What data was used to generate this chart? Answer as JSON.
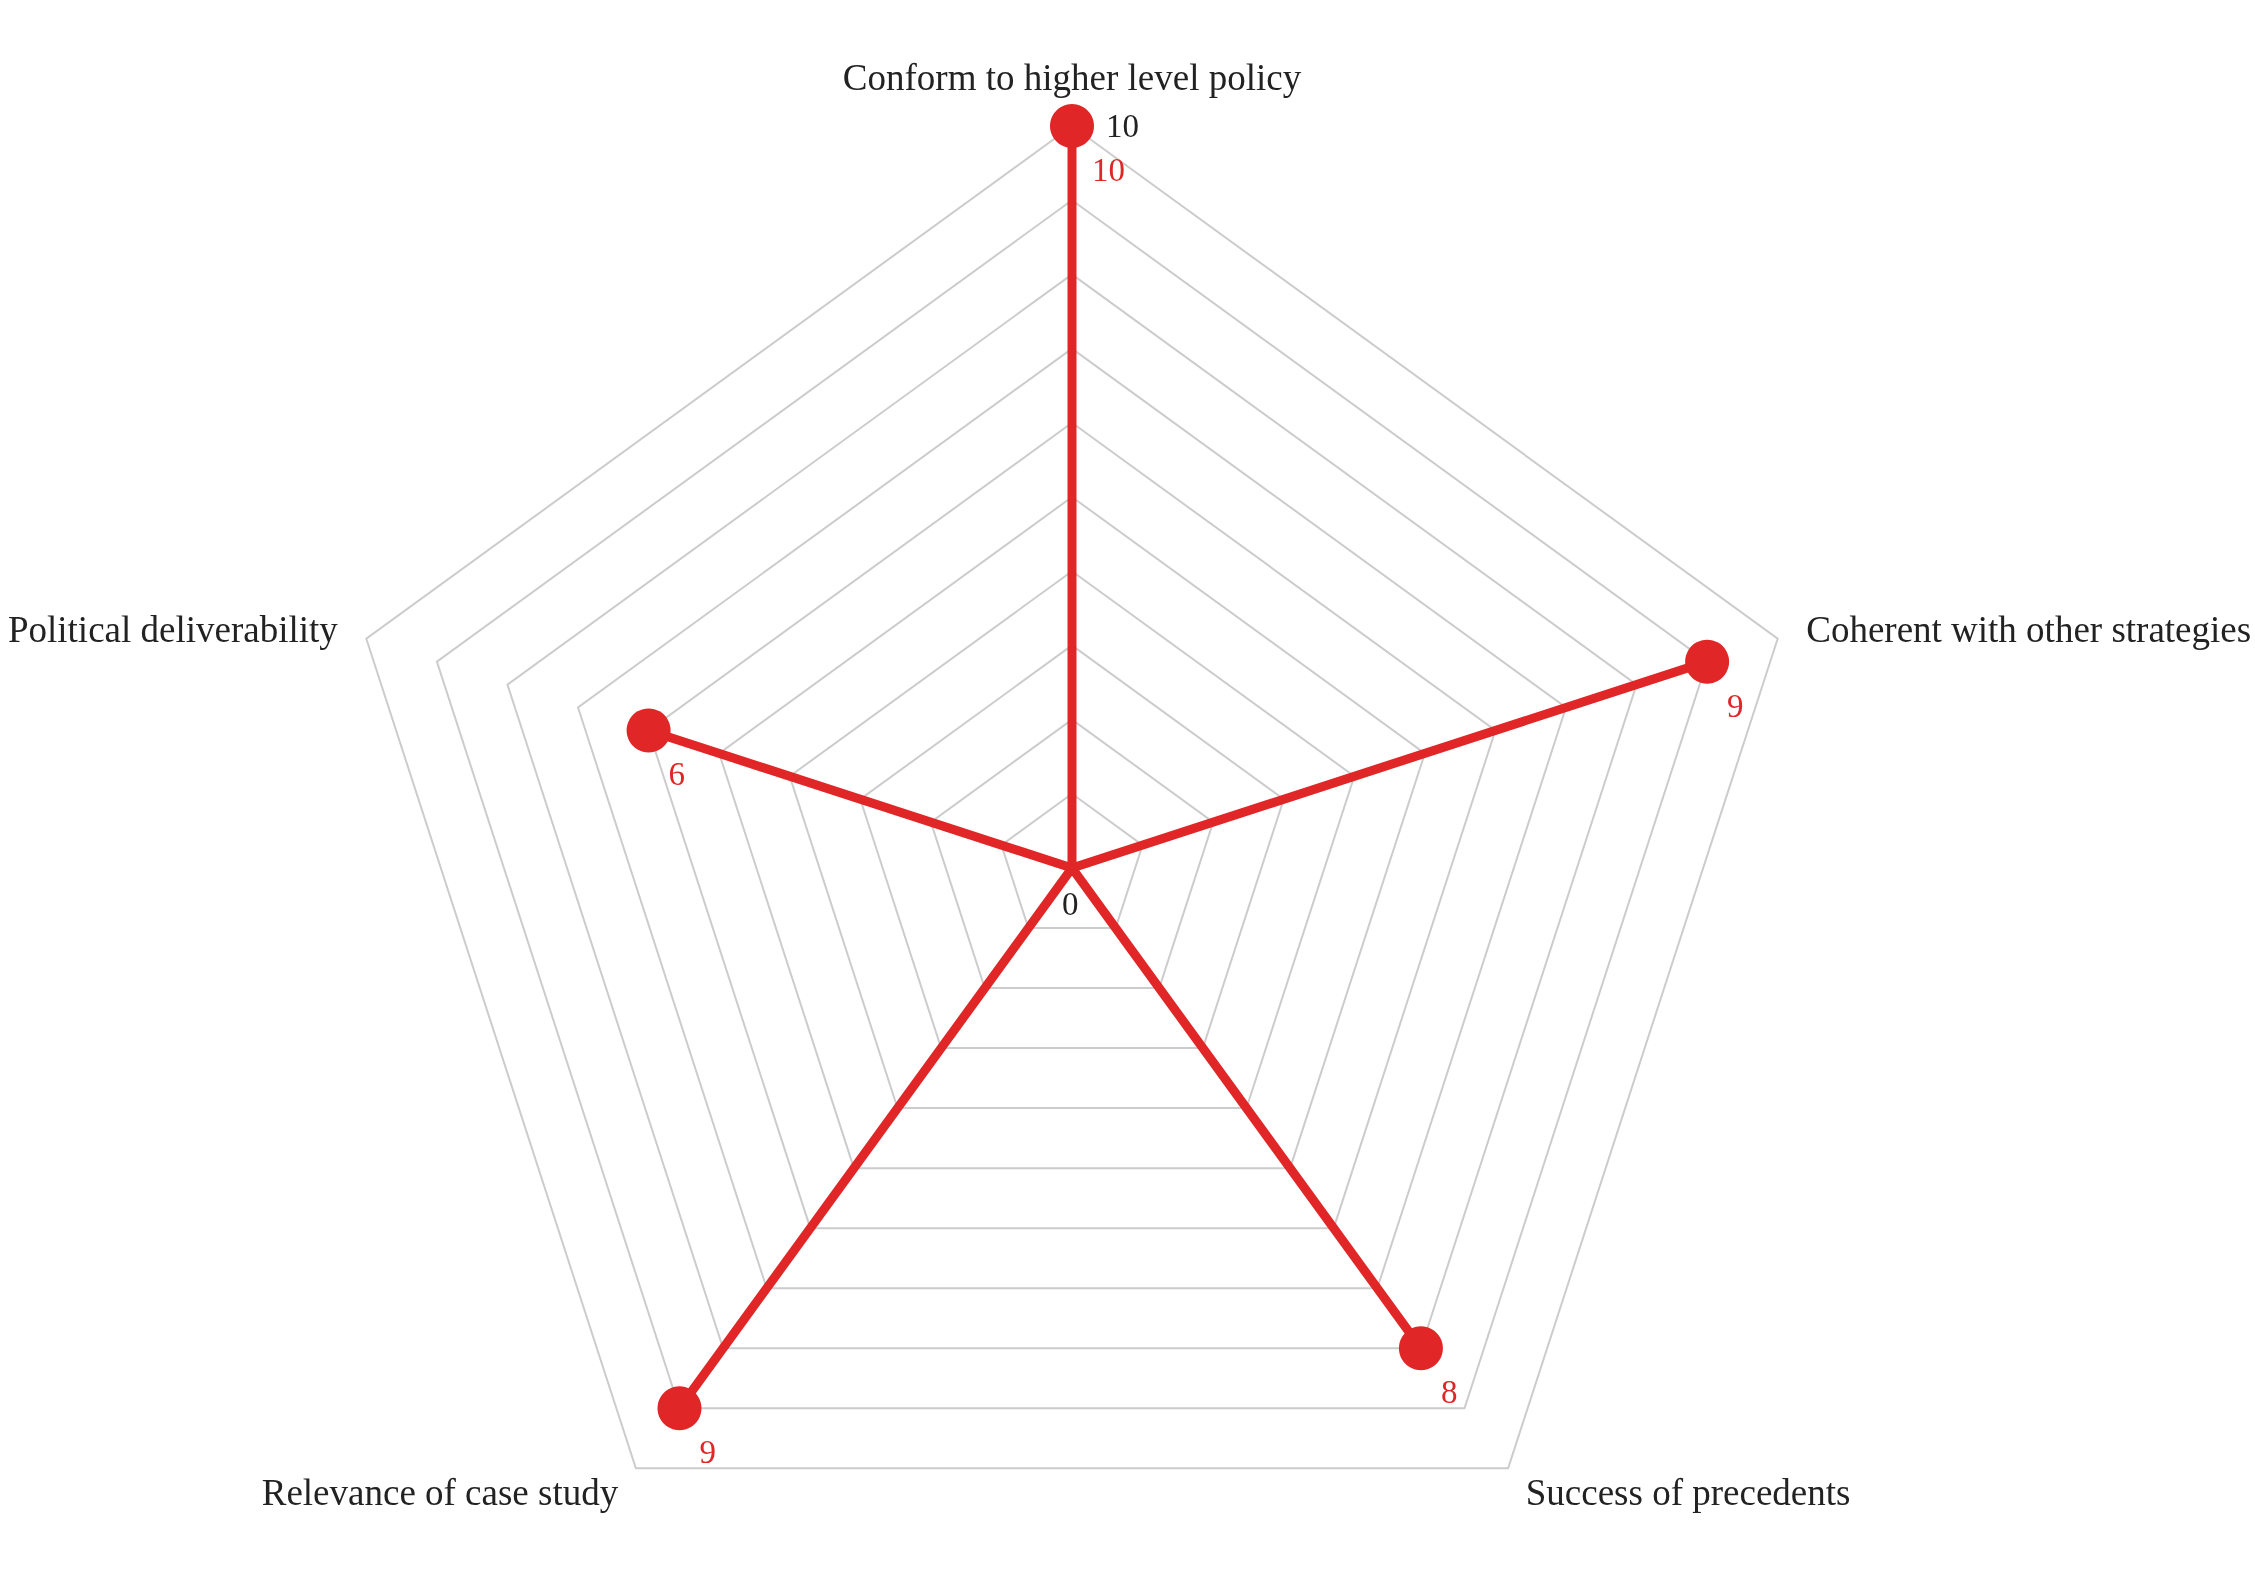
{
  "chart_data": {
    "type": "radar",
    "categories": [
      "Conform to higher level policy",
      "Coherent with other strategies",
      "Success of precedents",
      "Relevance of case study",
      "Political deliverability"
    ],
    "series": [
      {
        "color": "#e02626",
        "values": [
          10,
          9,
          8,
          9,
          6
        ]
      }
    ],
    "ylim": [
      0,
      10
    ],
    "yticks": [
      0,
      10
    ],
    "grid": true,
    "data_labels": true,
    "marker": "circle"
  }
}
